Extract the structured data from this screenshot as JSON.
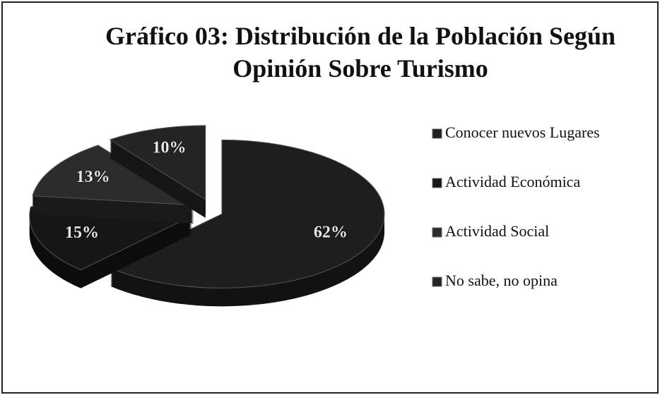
{
  "chart_data": {
    "type": "pie",
    "title": "Gráfico 03: Distribución de la Población Según Opinión Sobre Turismo",
    "categories": [
      "Conocer nuevos Lugares",
      "Actividad Económica",
      "Actividad Social",
      "No sabe, no opina"
    ],
    "values": [
      62,
      15,
      13,
      10
    ],
    "value_labels": [
      "62%",
      "15%",
      "13%",
      "10%"
    ],
    "colors": [
      "#1e1e1e",
      "#161616",
      "#2c2c2c",
      "#242424"
    ],
    "legend": "right"
  }
}
